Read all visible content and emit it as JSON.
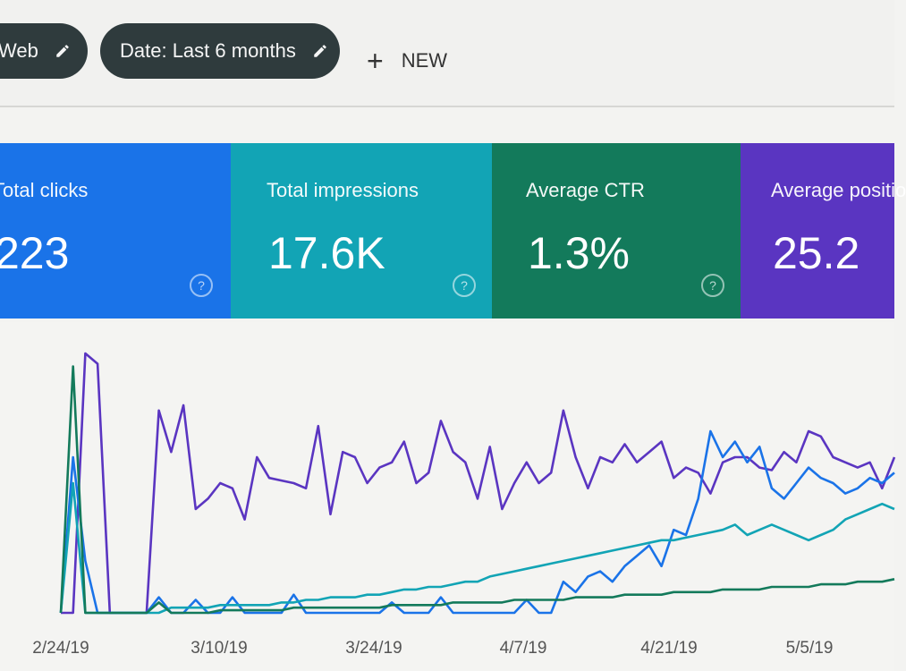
{
  "filters": {
    "web_label": "Web",
    "date_label": "Date: Last 6 months",
    "new_label": "NEW",
    "edit_icon": "pencil-icon",
    "add_icon": "plus-icon"
  },
  "metrics": {
    "clicks": {
      "label": "Total clicks",
      "value": "223",
      "color": "#1a73e8"
    },
    "impressions": {
      "label": "Total impressions",
      "value": "17.6K",
      "color": "#12a4b5"
    },
    "ctr": {
      "label": "Average CTR",
      "value": "1.3%",
      "color": "#137a5b"
    },
    "position": {
      "label": "Average positio",
      "value": "25.2",
      "color": "#5a35c1"
    },
    "help_icon": "help-circle-icon",
    "help_glyph": "?"
  },
  "chart_data": {
    "type": "line",
    "x_tick_labels": [
      "2/24/19",
      "3/10/19",
      "3/24/19",
      "4/7/19",
      "4/21/19",
      "5/5/19"
    ],
    "grid": false,
    "legend": "none",
    "series": [
      {
        "color": "#5a35c1",
        "values": [
          0,
          0,
          100,
          96,
          0,
          0,
          0,
          0,
          78,
          62,
          80,
          40,
          44,
          50,
          48,
          36,
          60,
          52,
          51,
          50,
          48,
          72,
          38,
          62,
          60,
          50,
          56,
          58,
          66,
          50,
          54,
          74,
          62,
          58,
          44,
          64,
          40,
          50,
          58,
          50,
          54,
          78,
          60,
          48,
          60,
          58,
          65,
          58,
          62,
          66,
          52,
          56,
          54,
          46,
          58,
          60,
          60,
          56,
          55,
          62,
          58,
          70,
          68,
          60,
          58,
          56,
          58,
          48,
          60
        ]
      },
      {
        "color": "#1a73e8",
        "values": [
          0,
          60,
          20,
          0,
          0,
          0,
          0,
          0,
          6,
          0,
          0,
          5,
          0,
          0,
          6,
          0,
          0,
          0,
          0,
          7,
          0,
          0,
          0,
          0,
          0,
          0,
          0,
          4,
          0,
          0,
          0,
          6,
          0,
          0,
          0,
          0,
          0,
          0,
          5,
          0,
          0,
          12,
          8,
          14,
          16,
          12,
          18,
          22,
          26,
          18,
          32,
          30,
          44,
          70,
          60,
          66,
          58,
          64,
          48,
          44,
          50,
          56,
          52,
          50,
          46,
          48,
          52,
          50,
          54
        ]
      },
      {
        "color": "#12a4b5",
        "values": [
          0,
          50,
          0,
          0,
          0,
          0,
          0,
          0,
          0,
          2,
          2,
          2,
          2,
          3,
          3,
          3,
          3,
          3,
          4,
          4,
          5,
          5,
          6,
          6,
          6,
          7,
          7,
          8,
          9,
          9,
          10,
          10,
          11,
          12,
          12,
          14,
          15,
          16,
          17,
          18,
          19,
          20,
          21,
          22,
          23,
          24,
          25,
          26,
          27,
          28,
          28,
          29,
          30,
          31,
          32,
          34,
          30,
          32,
          34,
          32,
          30,
          28,
          30,
          32,
          36,
          38,
          40,
          42,
          40
        ]
      },
      {
        "color": "#137a5b",
        "values": [
          0,
          95,
          0,
          0,
          0,
          0,
          0,
          0,
          4,
          0,
          0,
          0,
          0,
          1,
          1,
          1,
          1,
          1,
          1,
          2,
          2,
          2,
          2,
          2,
          2,
          2,
          2,
          3,
          3,
          3,
          3,
          3,
          4,
          4,
          4,
          4,
          4,
          5,
          5,
          5,
          5,
          5,
          6,
          6,
          6,
          6,
          7,
          7,
          7,
          7,
          8,
          8,
          8,
          8,
          9,
          9,
          9,
          9,
          10,
          10,
          10,
          10,
          11,
          11,
          11,
          12,
          12,
          12,
          13
        ]
      }
    ]
  }
}
